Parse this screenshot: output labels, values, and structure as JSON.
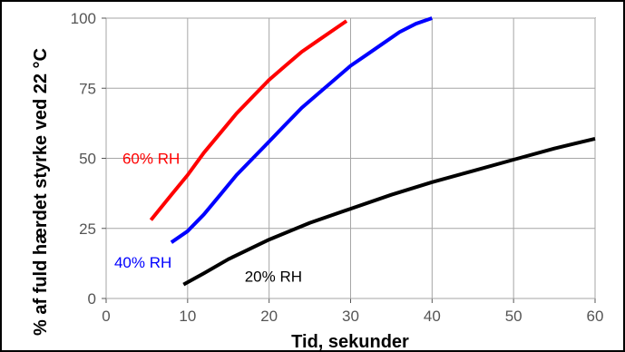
{
  "chart_data": {
    "type": "line",
    "title": "",
    "xlabel": "Tid, sekunder",
    "ylabel": "% af fuld hærdet styrke ved 22 °C",
    "xlim": [
      0,
      60
    ],
    "ylim": [
      0,
      100
    ],
    "x_ticks": [
      "0",
      "10",
      "20",
      "30",
      "40",
      "50",
      "60"
    ],
    "y_ticks": [
      "0",
      "25",
      "50",
      "75",
      "100"
    ],
    "grid": true,
    "legend": "none",
    "series": [
      {
        "name": "60% RH",
        "color": "#ff0000",
        "x": [
          5.5,
          8,
          10,
          12,
          14,
          16,
          18,
          20,
          22,
          24,
          26,
          28,
          29.5
        ],
        "y": [
          28,
          37,
          44,
          52,
          59,
          66,
          72,
          78,
          83,
          88,
          92,
          96,
          99
        ]
      },
      {
        "name": "40% RH",
        "color": "#0000ff",
        "x": [
          8,
          10,
          12,
          14,
          16,
          18,
          20,
          22,
          24,
          26,
          28,
          30,
          32,
          34,
          36,
          38,
          40
        ],
        "y": [
          20,
          24,
          30,
          37,
          44,
          50,
          56,
          62,
          68,
          73,
          78,
          83,
          87,
          91,
          95,
          98,
          100
        ]
      },
      {
        "name": "20% RH",
        "color": "#000000",
        "x": [
          9.5,
          12,
          15,
          20,
          25,
          30,
          35,
          40,
          45,
          50,
          55,
          60
        ],
        "y": [
          5,
          9,
          14,
          21,
          27,
          32,
          37,
          41.5,
          45.5,
          49.5,
          53.5,
          57
        ]
      }
    ]
  }
}
